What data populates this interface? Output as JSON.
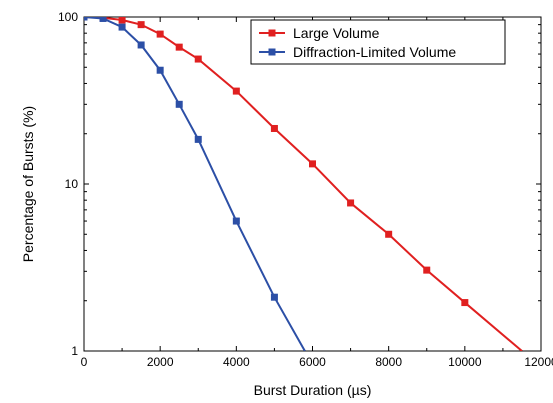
{
  "chart_data": {
    "type": "line",
    "title": "",
    "xlabel": "Burst Duration (µs)",
    "ylabel": "Percentage of Bursts (%)",
    "xlim": [
      0,
      12000
    ],
    "ylim": [
      1,
      100
    ],
    "xscale": "linear",
    "yscale": "log",
    "grid": false,
    "legend_position": "top-right",
    "x_ticks": [
      0,
      2000,
      4000,
      6000,
      8000,
      10000,
      12000
    ],
    "x_tick_labels": [
      "0",
      "2000",
      "4000",
      "6000",
      "8000",
      "10000",
      "12000"
    ],
    "y_ticks": [
      1,
      10,
      100
    ],
    "y_tick_labels": [
      "1",
      "10",
      "100"
    ],
    "series": [
      {
        "name": "Large Volume",
        "color": "#e02020",
        "marker": "square",
        "x": [
          0,
          500,
          1000,
          1500,
          2000,
          2500,
          3000,
          4000,
          5000,
          6000,
          7000,
          8000,
          9000,
          10000,
          11500
        ],
        "y": [
          100,
          99,
          96,
          90,
          79,
          66,
          56,
          36,
          21.5,
          13.2,
          7.7,
          5.0,
          3.05,
          1.95,
          1.0
        ]
      },
      {
        "name": "Diffraction-Limited Volume",
        "color": "#2c4fa6",
        "marker": "square",
        "x": [
          0,
          500,
          1000,
          1500,
          2000,
          2500,
          3000,
          4000,
          5000,
          5800
        ],
        "y": [
          100,
          98,
          87,
          68,
          48,
          30,
          18.5,
          6.0,
          2.1,
          1.0
        ]
      }
    ]
  }
}
